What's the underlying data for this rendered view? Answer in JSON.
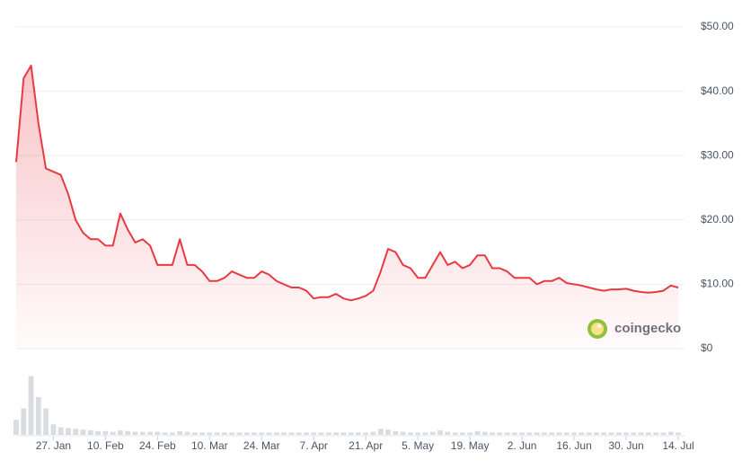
{
  "chart_data": {
    "type": "line",
    "categories": [
      null,
      null,
      null,
      null,
      null,
      "27. Jan",
      null,
      null,
      null,
      null,
      null,
      null,
      "10. Feb",
      null,
      null,
      null,
      null,
      null,
      null,
      "24. Feb",
      null,
      null,
      null,
      null,
      null,
      null,
      "10. Mar",
      null,
      null,
      null,
      null,
      null,
      null,
      "24. Mar",
      null,
      null,
      null,
      null,
      null,
      null,
      "7. Apr",
      null,
      null,
      null,
      null,
      null,
      null,
      "21. Apr",
      null,
      null,
      null,
      null,
      null,
      null,
      "5. May",
      null,
      null,
      null,
      null,
      null,
      null,
      "19. May",
      null,
      null,
      null,
      null,
      null,
      null,
      "2. Jun",
      null,
      null,
      null,
      null,
      null,
      null,
      "16. Jun",
      null,
      null,
      null,
      null,
      null,
      null,
      "30. Jun",
      null,
      null,
      null,
      null,
      null,
      null,
      "14. Jul"
    ],
    "series": [
      {
        "color": "#ea3943",
        "values": [
          29,
          42,
          44,
          35,
          28,
          27.5,
          27,
          24,
          20,
          18,
          17,
          17,
          16,
          16,
          21,
          18.5,
          16.5,
          17,
          16,
          13,
          13,
          13,
          17,
          13,
          13,
          12,
          10.5,
          10.5,
          11,
          12,
          11.5,
          11,
          11,
          12,
          11.5,
          10.5,
          10,
          9.5,
          9.5,
          9,
          7.8,
          8,
          8,
          8.5,
          7.8,
          7.5,
          7.8,
          8.2,
          9,
          12,
          15.5,
          15,
          13,
          12.5,
          11,
          11,
          13,
          15,
          13,
          13.5,
          12.5,
          13,
          14.5,
          14.5,
          12.5,
          12.5,
          12,
          11,
          11,
          11,
          10,
          10.5,
          10.5,
          11,
          10.2,
          10,
          9.8,
          9.5,
          9.2,
          9,
          9.2,
          9.2,
          9.3,
          9,
          8.8,
          8.7,
          8.8,
          9,
          9.8,
          9.5
        ]
      },
      {
        "color": "#d9dce1",
        "type": "bar",
        "axis": "y2",
        "values": [
          20,
          35,
          78,
          50,
          35,
          14,
          10,
          9,
          8,
          7,
          6,
          5,
          5,
          4,
          6,
          5,
          4,
          4,
          4,
          4,
          3,
          3,
          5,
          4,
          3,
          3,
          3,
          3,
          3,
          3,
          3,
          3,
          3,
          3,
          3,
          3,
          3,
          3,
          3,
          3,
          3,
          3,
          3,
          3,
          3,
          3,
          3,
          3,
          4,
          8,
          7,
          5,
          4,
          3,
          3,
          3,
          4,
          6,
          4,
          3,
          3,
          3,
          5,
          4,
          3,
          3,
          3,
          3,
          3,
          3,
          3,
          3,
          3,
          3,
          3,
          3,
          3,
          3,
          3,
          3,
          3,
          3,
          3,
          3,
          3,
          3,
          3,
          3,
          4,
          3
        ]
      }
    ],
    "ylim": [
      0,
      50
    ],
    "yticks": [
      {
        "value": 0,
        "label": "$0"
      },
      {
        "value": 10,
        "label": "$10.00"
      },
      {
        "value": 20,
        "label": "$20.00"
      },
      {
        "value": 30,
        "label": "$30.00"
      },
      {
        "value": 40,
        "label": "$40.00"
      },
      {
        "value": 50,
        "label": "$50.00"
      }
    ],
    "y2lim": [
      0,
      100
    ],
    "grid": true,
    "watermark": "coingecko"
  }
}
